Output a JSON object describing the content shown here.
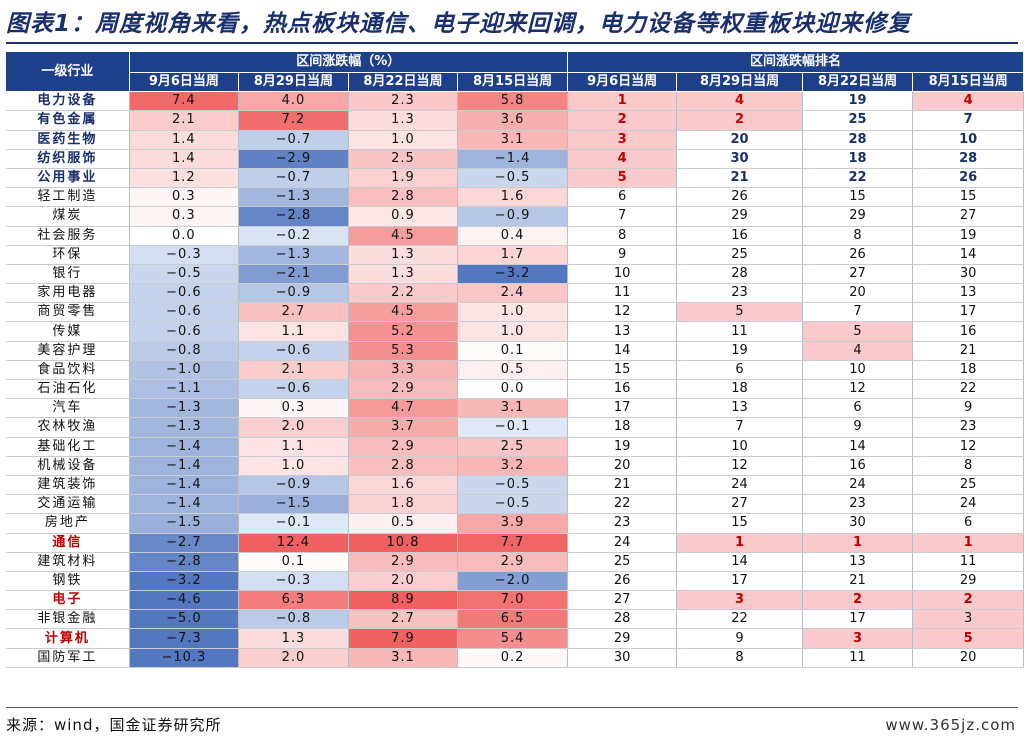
{
  "title": "图表1：周度视角来看，热点板块通信、电子迎来回调，电力设备等权重板块迎来修复",
  "header": {
    "industry": "一级行业",
    "group_change": "区间涨跌幅（%）",
    "group_rank": "区间涨跌幅排名",
    "periods": [
      "9月6日当周",
      "8月29日当周",
      "8月22日当周",
      "8月15日当周"
    ]
  },
  "rows": [
    {
      "name": "电力设备",
      "v": [
        "7.4",
        "4.0",
        "2.3",
        "5.8"
      ],
      "r": [
        "1",
        "4",
        "19",
        "4"
      ]
    },
    {
      "name": "有色金属",
      "v": [
        "2.1",
        "7.2",
        "1.3",
        "3.6"
      ],
      "r": [
        "2",
        "2",
        "25",
        "7"
      ]
    },
    {
      "name": "医药生物",
      "v": [
        "1.4",
        "-0.7",
        "1.0",
        "3.1"
      ],
      "r": [
        "3",
        "20",
        "28",
        "10"
      ]
    },
    {
      "name": "纺织服饰",
      "v": [
        "1.4",
        "-2.9",
        "2.5",
        "-1.4"
      ],
      "r": [
        "4",
        "30",
        "18",
        "28"
      ]
    },
    {
      "name": "公用事业",
      "v": [
        "1.2",
        "-0.7",
        "1.9",
        "-0.5"
      ],
      "r": [
        "5",
        "21",
        "22",
        "26"
      ]
    },
    {
      "name": "轻工制造",
      "v": [
        "0.3",
        "-1.3",
        "2.8",
        "1.6"
      ],
      "r": [
        "6",
        "26",
        "15",
        "15"
      ]
    },
    {
      "name": "煤炭",
      "v": [
        "0.3",
        "-2.8",
        "0.9",
        "-0.9"
      ],
      "r": [
        "7",
        "29",
        "29",
        "27"
      ]
    },
    {
      "name": "社会服务",
      "v": [
        "0.0",
        "-0.2",
        "4.5",
        "0.4"
      ],
      "r": [
        "8",
        "16",
        "8",
        "19"
      ]
    },
    {
      "name": "环保",
      "v": [
        "-0.3",
        "-1.3",
        "1.3",
        "1.7"
      ],
      "r": [
        "9",
        "25",
        "26",
        "14"
      ]
    },
    {
      "name": "银行",
      "v": [
        "-0.5",
        "-2.1",
        "1.3",
        "-3.2"
      ],
      "r": [
        "10",
        "28",
        "27",
        "30"
      ]
    },
    {
      "name": "家用电器",
      "v": [
        "-0.6",
        "-0.9",
        "2.2",
        "2.4"
      ],
      "r": [
        "11",
        "23",
        "20",
        "13"
      ]
    },
    {
      "name": "商贸零售",
      "v": [
        "-0.6",
        "2.7",
        "4.5",
        "1.0"
      ],
      "r": [
        "12",
        "5",
        "7",
        "17"
      ]
    },
    {
      "name": "传媒",
      "v": [
        "-0.6",
        "1.1",
        "5.2",
        "1.0"
      ],
      "r": [
        "13",
        "11",
        "5",
        "16"
      ]
    },
    {
      "name": "美容护理",
      "v": [
        "-0.8",
        "-0.6",
        "5.3",
        "0.1"
      ],
      "r": [
        "14",
        "19",
        "4",
        "21"
      ]
    },
    {
      "name": "食品饮料",
      "v": [
        "-1.0",
        "2.1",
        "3.3",
        "0.5"
      ],
      "r": [
        "15",
        "6",
        "10",
        "18"
      ]
    },
    {
      "name": "石油石化",
      "v": [
        "-1.1",
        "-0.6",
        "2.9",
        "0.0"
      ],
      "r": [
        "16",
        "18",
        "12",
        "22"
      ]
    },
    {
      "name": "汽车",
      "v": [
        "-1.3",
        "0.3",
        "4.7",
        "3.1"
      ],
      "r": [
        "17",
        "13",
        "6",
        "9"
      ]
    },
    {
      "name": "农林牧渔",
      "v": [
        "-1.3",
        "2.0",
        "3.7",
        "-0.1"
      ],
      "r": [
        "18",
        "7",
        "9",
        "23"
      ]
    },
    {
      "name": "基础化工",
      "v": [
        "-1.4",
        "1.1",
        "2.9",
        "2.5"
      ],
      "r": [
        "19",
        "10",
        "14",
        "12"
      ]
    },
    {
      "name": "机械设备",
      "v": [
        "-1.4",
        "1.0",
        "2.8",
        "3.2"
      ],
      "r": [
        "20",
        "12",
        "16",
        "8"
      ]
    },
    {
      "name": "建筑装饰",
      "v": [
        "-1.4",
        "-0.9",
        "1.6",
        "-0.5"
      ],
      "r": [
        "21",
        "24",
        "24",
        "25"
      ]
    },
    {
      "name": "交通运输",
      "v": [
        "-1.4",
        "-1.5",
        "1.8",
        "-0.5"
      ],
      "r": [
        "22",
        "27",
        "23",
        "24"
      ]
    },
    {
      "name": "房地产",
      "v": [
        "-1.5",
        "-0.1",
        "0.5",
        "3.9"
      ],
      "r": [
        "23",
        "15",
        "30",
        "6"
      ]
    },
    {
      "name": "通信",
      "v": [
        "-2.7",
        "12.4",
        "10.8",
        "7.7"
      ],
      "r": [
        "24",
        "1",
        "1",
        "1"
      ]
    },
    {
      "name": "建筑材料",
      "v": [
        "-2.8",
        "0.1",
        "2.9",
        "2.9"
      ],
      "r": [
        "25",
        "14",
        "13",
        "11"
      ]
    },
    {
      "name": "钢铁",
      "v": [
        "-3.2",
        "-0.3",
        "2.0",
        "-2.0"
      ],
      "r": [
        "26",
        "17",
        "21",
        "29"
      ]
    },
    {
      "name": "电子",
      "v": [
        "-4.6",
        "6.3",
        "8.9",
        "7.0"
      ],
      "r": [
        "27",
        "3",
        "2",
        "2"
      ]
    },
    {
      "name": "非银金融",
      "v": [
        "-5.0",
        "-0.8",
        "2.7",
        "6.5"
      ],
      "r": [
        "28",
        "22",
        "17",
        "3"
      ]
    },
    {
      "name": "计算机",
      "v": [
        "-7.3",
        "1.3",
        "7.9",
        "5.4"
      ],
      "r": [
        "29",
        "9",
        "3",
        "5"
      ]
    },
    {
      "name": "国防军工",
      "v": [
        "-10.3",
        "2.0",
        "3.1",
        "0.2"
      ],
      "r": [
        "30",
        "8",
        "11",
        "20"
      ]
    }
  ],
  "highlight_red": [
    "通信",
    "电子",
    "计算机"
  ],
  "highlight_navy": [
    "电力设备",
    "有色金属",
    "医药生物",
    "纺织服饰",
    "公用事业"
  ],
  "colors": {
    "header": "#1e3f8a",
    "pos_max": "#f06060",
    "neg_max": "#5478c0",
    "rank_top": "#f9c9cc",
    "title": "#1a2f6e",
    "red_text": "#c00000"
  },
  "source": "来源：wind，国金证券研究所",
  "watermark": "www.365jz.com"
}
